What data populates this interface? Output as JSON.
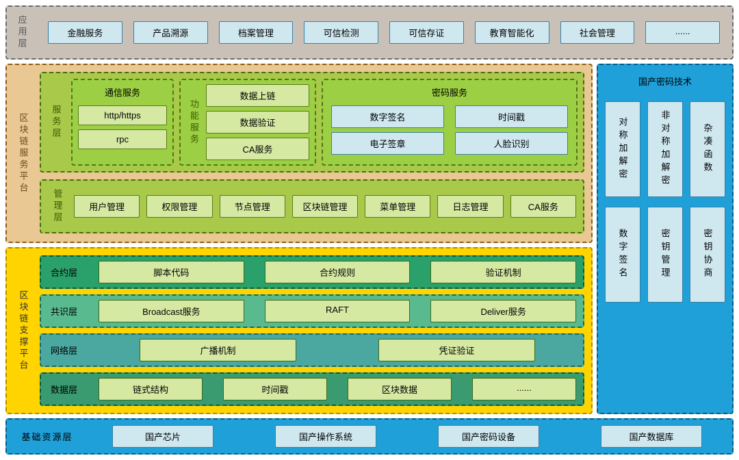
{
  "colors": {
    "app_bg": "#c9c1b7",
    "app_border": "#6a6a6a",
    "blue_chip_bg": "#cfe8f0",
    "blue_chip_border": "#3b7fa3",
    "svc_bg": "#e9c893",
    "svc_border": "#8a5a1a",
    "green_outer_bg": "#a9c94b",
    "green_outer_border": "#4a6a10",
    "green_group_bg": "#9ccf43",
    "green_group_border": "#4a7a10",
    "green_chip_bg": "#d6e9a3",
    "green_chip_border": "#5a7a1a",
    "right_bg": "#1fa0d8",
    "right_border": "#0a5a80",
    "right_chip_bg": "#cfe8f0",
    "right_chip_border": "#3b7fa3",
    "yellow_bg": "#ffd400",
    "yellow_border": "#b08a00",
    "row_contract_bg": "#2aa06a",
    "row_contract_border": "#0a5a3a",
    "row_consensus_bg": "#59b98f",
    "row_consensus_border": "#1a6a4a",
    "row_network_bg": "#4aa8a0",
    "row_network_border": "#1a6a60",
    "row_data_bg": "#3a9a70",
    "row_data_border": "#0a5a3a",
    "support_chip_bg": "#d6e9a3",
    "support_chip_border": "#3a6a1a",
    "base_bg": "#1fa0d8",
    "base_border": "#0a5a80"
  },
  "app": {
    "label": "应用层",
    "items": [
      "金融服务",
      "产品溯源",
      "档案管理",
      "可信检测",
      "可信存证",
      "教育智能化",
      "社会管理",
      "......"
    ]
  },
  "svc_platform_label": "区块链服务平台",
  "svc_layer": {
    "label": "服务层",
    "comm": {
      "title": "通信服务",
      "items": [
        "http/https",
        "rpc"
      ]
    },
    "func": {
      "label": "功能服务",
      "items": [
        "数据上链",
        "数据验证",
        "CA服务"
      ]
    },
    "crypto": {
      "title": "密码服务",
      "items": [
        "数字签名",
        "时间戳",
        "电子签章",
        "人脸识别"
      ]
    }
  },
  "mgmt": {
    "label": "管理层",
    "items": [
      "用户管理",
      "权限管理",
      "节点管理",
      "区块链管理",
      "菜单管理",
      "日志管理",
      "CA服务"
    ]
  },
  "crypto_tech": {
    "title": "国产密码技术",
    "row1": [
      "对称加解密",
      "非对称加解密",
      "杂凑函数"
    ],
    "row2": [
      "数字签名",
      "密钥管理",
      "密钥协商"
    ]
  },
  "support": {
    "label": "区块链支撑平台",
    "rows": [
      {
        "label": "合约层",
        "items": [
          "脚本代码",
          "合约规则",
          "验证机制"
        ],
        "bg": "row_contract_bg",
        "bd": "row_contract_border"
      },
      {
        "label": "共识层",
        "items": [
          "Broadcast服务",
          "RAFT",
          "Deliver服务"
        ],
        "bg": "row_consensus_bg",
        "bd": "row_consensus_border"
      },
      {
        "label": "网络层",
        "items": [
          "广播机制",
          "凭证验证"
        ],
        "bg": "row_network_bg",
        "bd": "row_network_border",
        "two": true
      },
      {
        "label": "数据层",
        "items": [
          "链式结构",
          "时间戳",
          "区块数据",
          "......"
        ],
        "bg": "row_data_bg",
        "bd": "row_data_border"
      }
    ]
  },
  "base": {
    "label": "基础资源层",
    "items": [
      "国产芯片",
      "国产操作系统",
      "国产密码设备",
      "国产数据库"
    ]
  }
}
